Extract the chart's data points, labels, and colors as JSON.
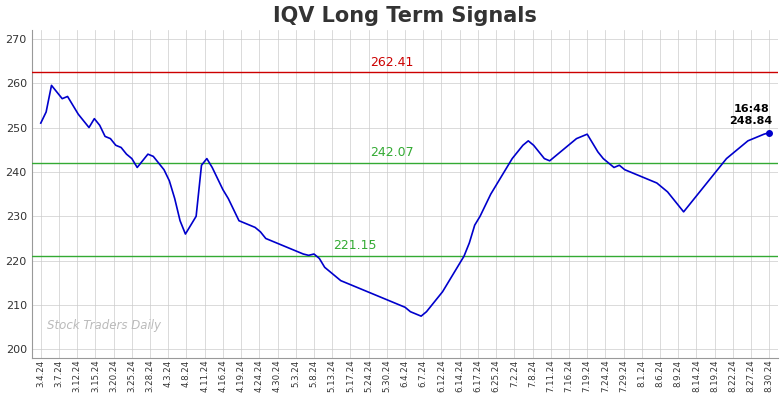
{
  "title": "IQV Long Term Signals",
  "title_fontsize": 15,
  "title_fontweight": "bold",
  "title_color": "#333333",
  "background_color": "#ffffff",
  "grid_color": "#cccccc",
  "line_color": "#0000cc",
  "line_width": 1.2,
  "red_line_value": 262.41,
  "red_line_color": "#cc0000",
  "green_line_value1": 242.07,
  "green_line_value2": 221.15,
  "green_line_color": "#33aa33",
  "annotation_red_text": "262.41",
  "annotation_green1_text": "242.07",
  "annotation_green2_text": "221.15",
  "last_price": 248.84,
  "last_time": "16:48",
  "last_annotation_color": "#000000",
  "watermark_text": "Stock Traders Daily",
  "watermark_color": "#bbbbbb",
  "ylim": [
    198,
    272
  ],
  "yticks": [
    200,
    210,
    220,
    230,
    240,
    250,
    260,
    270
  ],
  "x_labels": [
    "3.4.24",
    "3.7.24",
    "3.12.24",
    "3.15.24",
    "3.20.24",
    "3.25.24",
    "3.28.24",
    "4.3.24",
    "4.8.24",
    "4.11.24",
    "4.16.24",
    "4.19.24",
    "4.24.24",
    "4.30.24",
    "5.3.24",
    "5.8.24",
    "5.13.24",
    "5.17.24",
    "5.24.24",
    "5.30.24",
    "6.4.24",
    "6.7.24",
    "6.12.24",
    "6.14.24",
    "6.17.24",
    "6.25.24",
    "7.2.24",
    "7.8.24",
    "7.11.24",
    "7.16.24",
    "7.19.24",
    "7.24.24",
    "7.29.24",
    "8.1.24",
    "8.6.24",
    "8.9.24",
    "8.14.24",
    "8.19.24",
    "8.22.24",
    "8.27.24",
    "8.30.24"
  ],
  "prices": [
    251.0,
    253.5,
    259.5,
    258.0,
    256.5,
    257.0,
    255.0,
    253.0,
    251.5,
    250.0,
    252.0,
    250.5,
    248.0,
    247.5,
    246.0,
    245.5,
    244.0,
    243.0,
    241.0,
    242.5,
    244.0,
    243.5,
    242.0,
    240.5,
    238.0,
    234.0,
    229.0,
    226.0,
    228.0,
    230.0,
    241.5,
    243.0,
    241.0,
    238.5,
    236.0,
    234.0,
    231.5,
    229.0,
    228.5,
    228.0,
    227.5,
    226.5,
    225.0,
    224.5,
    224.0,
    223.5,
    223.0,
    222.5,
    222.0,
    221.5,
    221.2,
    221.5,
    220.5,
    218.5,
    217.5,
    216.5,
    215.5,
    215.0,
    214.5,
    214.0,
    213.5,
    213.0,
    212.5,
    212.0,
    211.5,
    211.0,
    210.5,
    210.0,
    209.5,
    208.5,
    208.0,
    207.5,
    208.5,
    210.0,
    211.5,
    213.0,
    215.0,
    217.0,
    219.0,
    221.0,
    224.0,
    228.0,
    230.0,
    232.5,
    235.0,
    237.0,
    239.0,
    241.0,
    243.0,
    244.5,
    246.0,
    247.0,
    246.0,
    244.5,
    243.0,
    242.5,
    243.5,
    244.5,
    245.5,
    246.5,
    247.5,
    248.0,
    248.5,
    246.5,
    244.5,
    243.0,
    242.0,
    241.0,
    241.5,
    240.5,
    240.0,
    239.5,
    239.0,
    238.5,
    238.0,
    237.5,
    236.5,
    235.5,
    234.0,
    232.5,
    231.0,
    232.5,
    234.0,
    235.5,
    237.0,
    238.5,
    240.0,
    241.5,
    243.0,
    244.0,
    245.0,
    246.0,
    247.0,
    247.5,
    248.0,
    248.5,
    248.84
  ]
}
